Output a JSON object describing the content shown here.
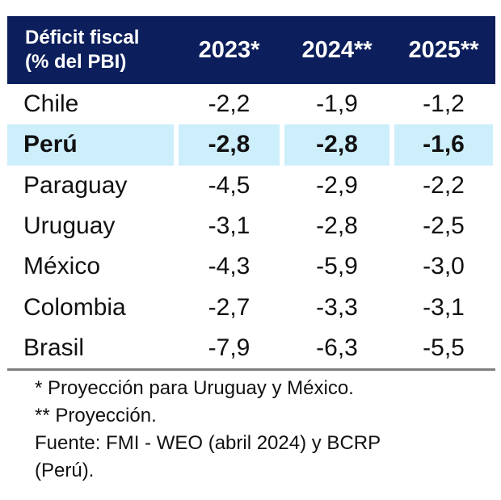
{
  "chart_data": {
    "type": "table",
    "title": "",
    "header": {
      "label_line1": "Déficit fiscal",
      "label_line2": "(%  del PBI)",
      "years": [
        "2023*",
        "2024**",
        "2025**"
      ]
    },
    "rows": [
      {
        "country": "Chile",
        "values": [
          "-2,2",
          "-1,9",
          "-1,2"
        ],
        "highlight": false
      },
      {
        "country": "Perú",
        "values": [
          "-2,8",
          "-2,8",
          "-1,6"
        ],
        "highlight": true
      },
      {
        "country": "Paraguay",
        "values": [
          "-4,5",
          "-2,9",
          "-2,2"
        ],
        "highlight": false
      },
      {
        "country": "Uruguay",
        "values": [
          "-3,1",
          "-2,8",
          "-2,5"
        ],
        "highlight": false
      },
      {
        "country": "México",
        "values": [
          "-4,3",
          "-5,9",
          "-3,0"
        ],
        "highlight": false
      },
      {
        "country": "Colombia",
        "values": [
          "-2,7",
          "-3,3",
          "-3,1"
        ],
        "highlight": false
      },
      {
        "country": "Brasil",
        "values": [
          "-7,9",
          "-6,3",
          "-5,5"
        ],
        "highlight": false
      }
    ]
  },
  "notes": {
    "note1": "* Proyección para Uruguay y México.",
    "note2": "** Proyección.",
    "source_line1": "Fuente: FMI - WEO (abril 2024) y BCRP",
    "source_line2": "(Perú)."
  },
  "colors": {
    "header_bg": "#0c1f5c",
    "header_text": "#ffffff",
    "highlight_bg": "#cdeefb",
    "rule": "#7f7f7f"
  }
}
